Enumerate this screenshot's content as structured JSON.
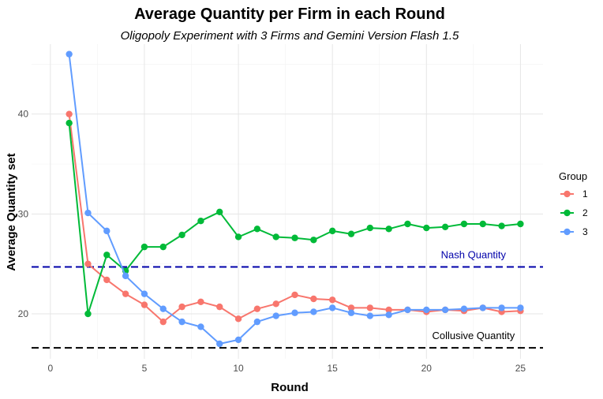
{
  "chart_data": {
    "type": "line",
    "title": "Average Quantity per Firm in each Round",
    "subtitle": "Oligopoly Experiment with 3 Firms and Gemini Version Flash 1.5",
    "xlabel": "Round",
    "ylabel": "Average Quantity set",
    "xlim": [
      -1,
      26.2
    ],
    "ylim": [
      15.5,
      47
    ],
    "xticks": [
      0,
      5,
      10,
      15,
      20,
      25
    ],
    "yticks": [
      20,
      30,
      40
    ],
    "grid": true,
    "legend": {
      "title": "Group",
      "position": "right"
    },
    "x": [
      1,
      2,
      3,
      4,
      5,
      6,
      7,
      8,
      9,
      10,
      11,
      12,
      13,
      14,
      15,
      16,
      17,
      18,
      19,
      20,
      21,
      22,
      23,
      24,
      25
    ],
    "series": [
      {
        "name": "1",
        "color": "#F8766D",
        "values": [
          40.0,
          25.0,
          23.4,
          22.0,
          20.9,
          19.2,
          20.7,
          21.2,
          20.7,
          19.5,
          20.5,
          21.0,
          21.9,
          21.5,
          21.4,
          20.6,
          20.6,
          20.4,
          20.4,
          20.2,
          20.4,
          20.3,
          20.6,
          20.2,
          20.3
        ]
      },
      {
        "name": "2",
        "color": "#00BA38",
        "values": [
          39.1,
          20.0,
          25.9,
          24.3,
          26.7,
          26.7,
          27.9,
          29.3,
          30.2,
          27.7,
          28.5,
          27.7,
          27.6,
          27.4,
          28.3,
          28.0,
          28.6,
          28.5,
          29.0,
          28.6,
          28.7,
          29.0,
          29.0,
          28.8,
          29.0
        ]
      },
      {
        "name": "3",
        "color": "#619CFF",
        "values": [
          46.0,
          30.1,
          28.3,
          23.8,
          22.0,
          20.5,
          19.2,
          18.7,
          17.0,
          17.4,
          19.2,
          19.8,
          20.1,
          20.2,
          20.6,
          20.1,
          19.8,
          19.9,
          20.4,
          20.4,
          20.4,
          20.5,
          20.6,
          20.6,
          20.6
        ]
      }
    ],
    "reference_lines": [
      {
        "label": "Nash Quantity",
        "value": 24.7,
        "color": "#0000AA",
        "style": "dashed"
      },
      {
        "label": "Collusive Quantity",
        "value": 16.6,
        "color": "#000000",
        "style": "dashed"
      }
    ]
  }
}
